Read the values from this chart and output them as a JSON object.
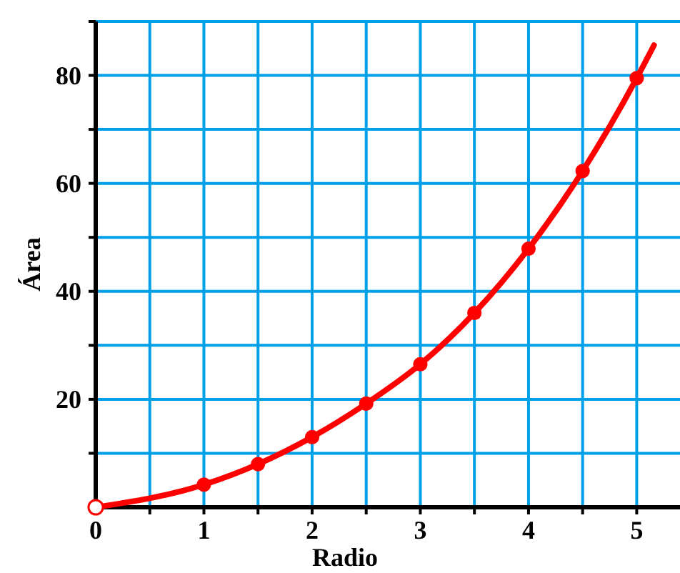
{
  "chart_data": {
    "type": "line",
    "xlabel": "Radio",
    "ylabel": "Área",
    "xlim": [
      0,
      5.4
    ],
    "ylim": [
      0,
      90
    ],
    "xticks": [
      0,
      {
        "value": 0.5,
        "label": null
      },
      1,
      {
        "value": 1.5,
        "label": null
      },
      2,
      {
        "value": 2.5,
        "label": null
      },
      3,
      {
        "value": 3.5,
        "label": null
      },
      4,
      {
        "value": 4.5,
        "label": null
      },
      5
    ],
    "yticks": [
      {
        "value": 0,
        "label": null
      },
      {
        "value": 10,
        "label": null
      },
      20,
      {
        "value": 30,
        "label": null
      },
      40,
      {
        "value": 50,
        "label": null
      },
      60,
      {
        "value": 70,
        "label": null
      },
      80,
      {
        "value": 90,
        "label": null
      }
    ],
    "grid": true,
    "series": [
      {
        "color": "#ff0000",
        "marker": "none",
        "x": [
          0,
          1,
          1.5,
          2,
          2.5,
          3,
          3.5,
          4,
          4.5,
          5,
          5.16
        ],
        "values": [
          0,
          4.2,
          8,
          13,
          19.2,
          26.5,
          36,
          47.9,
          62.3,
          79.5,
          85.6
        ]
      },
      {
        "type": "scatter",
        "color": "#ff0000",
        "marker": "circle",
        "x": [
          1,
          1.5,
          2,
          2.5,
          3,
          3.5,
          4,
          4.5,
          5
        ],
        "values": [
          4.2,
          8,
          13,
          19.2,
          26.5,
          36,
          47.9,
          62.3,
          79.5
        ]
      },
      {
        "type": "scatter",
        "color": "#ffffff",
        "marker": "circle",
        "x": [
          0
        ],
        "values": [
          0
        ]
      }
    ]
  }
}
